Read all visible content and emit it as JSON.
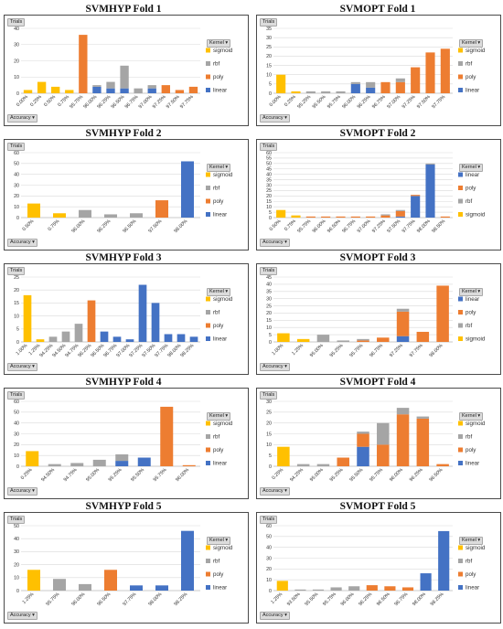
{
  "ui": {
    "trials_button": "Trials",
    "accuracy_button": "Accuracy ▾",
    "kernel_button": "Kernel ▾"
  },
  "colors": {
    "sigmoid": "#FFC000",
    "rbf": "#A5A5A5",
    "poly": "#ED7D31",
    "linear": "#4472C4"
  },
  "chart_data": [
    {
      "type": "bar",
      "title": "SVMHYP Fold 1",
      "categories": [
        "0.00%",
        "0.25%",
        "0.50%",
        "0.75%",
        "95.75%",
        "96.00%",
        "96.25%",
        "96.50%",
        "96.75%",
        "97.00%",
        "97.25%",
        "97.50%",
        "97.75%"
      ],
      "series": [
        {
          "name": "linear",
          "values": [
            0,
            0,
            0,
            0,
            0,
            4,
            3,
            3,
            0,
            3,
            0,
            0,
            0
          ]
        },
        {
          "name": "poly",
          "values": [
            0,
            0,
            0,
            0,
            36,
            0,
            0,
            0,
            0,
            0,
            5,
            2,
            4
          ]
        },
        {
          "name": "rbf",
          "values": [
            0,
            0,
            0,
            0,
            0,
            1,
            4,
            14,
            3,
            2,
            0,
            0,
            0
          ]
        },
        {
          "name": "sigmoid",
          "values": [
            2,
            7,
            4,
            2,
            0,
            0,
            0,
            0,
            0,
            0,
            0,
            0,
            0
          ]
        }
      ],
      "legend": [
        "sigmoid",
        "rbf",
        "poly",
        "linear"
      ],
      "ylim": [
        0,
        40
      ],
      "yticks": [
        0,
        10,
        20,
        30,
        40
      ],
      "legend_position": "right"
    },
    {
      "type": "bar",
      "title": "SVMOPT Fold 1",
      "categories": [
        "0.00%",
        "0.25%",
        "95.25%",
        "95.50%",
        "95.75%",
        "96.00%",
        "96.25%",
        "96.75%",
        "97.00%",
        "97.25%",
        "97.50%",
        "97.75%"
      ],
      "series": [
        {
          "name": "linear",
          "values": [
            0,
            0,
            0,
            0,
            0,
            5,
            3,
            0,
            0,
            0,
            0,
            0
          ]
        },
        {
          "name": "poly",
          "values": [
            0,
            0,
            0,
            0,
            0,
            0,
            0,
            6,
            6,
            14,
            22,
            24
          ]
        },
        {
          "name": "rbf",
          "values": [
            0,
            0,
            1,
            1,
            1,
            1,
            3,
            0,
            2,
            0,
            0,
            0
          ]
        },
        {
          "name": "sigmoid",
          "values": [
            10,
            1,
            0,
            0,
            0,
            0,
            0,
            0,
            0,
            0,
            0,
            0
          ]
        }
      ],
      "legend": [
        "sigmoid",
        "rbf",
        "poly",
        "linear"
      ],
      "ylim": [
        0,
        35
      ],
      "yticks": [
        0,
        5,
        10,
        15,
        20,
        25,
        30,
        35
      ],
      "legend_position": "right"
    },
    {
      "type": "bar",
      "title": "SVMHYP Fold 2",
      "categories": [
        "0.50%",
        "0.75%",
        "96.00%",
        "96.25%",
        "96.50%",
        "97.50%",
        "98.00%"
      ],
      "series": [
        {
          "name": "linear",
          "values": [
            0,
            0,
            0,
            0,
            0,
            0,
            52
          ]
        },
        {
          "name": "poly",
          "values": [
            0,
            0,
            0,
            0,
            0,
            16,
            0
          ]
        },
        {
          "name": "rbf",
          "values": [
            0,
            0,
            7,
            3,
            4,
            0,
            0
          ]
        },
        {
          "name": "sigmoid",
          "values": [
            13,
            4,
            0,
            0,
            0,
            0,
            0
          ]
        }
      ],
      "legend": [
        "sigmoid",
        "rbf",
        "poly",
        "linear"
      ],
      "ylim": [
        0,
        60
      ],
      "yticks": [
        0,
        10,
        20,
        30,
        40,
        50,
        60
      ],
      "legend_position": "right"
    },
    {
      "type": "bar",
      "title": "SVMOPT Fold 2",
      "categories": [
        "0.50%",
        "0.75%",
        "95.75%",
        "96.00%",
        "96.50%",
        "96.75%",
        "97.00%",
        "97.25%",
        "97.50%",
        "97.75%",
        "98.00%",
        "98.50%"
      ],
      "series": [
        {
          "name": "linear",
          "values": [
            0,
            0,
            0,
            0,
            0,
            0,
            0,
            0,
            1,
            20,
            49,
            0
          ]
        },
        {
          "name": "poly",
          "values": [
            0,
            0,
            1,
            1,
            1,
            1,
            1,
            2,
            5,
            1,
            0,
            1
          ]
        },
        {
          "name": "rbf",
          "values": [
            0,
            0,
            0,
            0,
            0,
            0,
            0,
            1,
            1,
            0,
            1,
            0
          ]
        },
        {
          "name": "sigmoid",
          "values": [
            7,
            2,
            0,
            0,
            0,
            0,
            0,
            0,
            0,
            0,
            0,
            0
          ]
        }
      ],
      "legend": [
        "linear",
        "poly",
        "rbf",
        "sigmoid"
      ],
      "ylim": [
        0,
        60
      ],
      "yticks": [
        0,
        5,
        10,
        15,
        20,
        25,
        30,
        35,
        40,
        45,
        50,
        55,
        60
      ],
      "legend_position": "right"
    },
    {
      "type": "bar",
      "title": "SVMHYP Fold 3",
      "categories": [
        "1.00%",
        "1.25%",
        "94.25%",
        "94.50%",
        "94.75%",
        "96.25%",
        "96.50%",
        "96.75%",
        "97.00%",
        "97.25%",
        "97.50%",
        "97.75%",
        "98.00%",
        "98.25%"
      ],
      "series": [
        {
          "name": "linear",
          "values": [
            0,
            0,
            0,
            0,
            0,
            0,
            4,
            2,
            1,
            22,
            15,
            3,
            3,
            2
          ]
        },
        {
          "name": "poly",
          "values": [
            0,
            0,
            0,
            0,
            0,
            16,
            0,
            0,
            0,
            0,
            0,
            0,
            0,
            0
          ]
        },
        {
          "name": "rbf",
          "values": [
            0,
            0,
            2,
            4,
            7,
            0,
            0,
            0,
            0,
            0,
            0,
            0,
            0,
            0
          ]
        },
        {
          "name": "sigmoid",
          "values": [
            18,
            1,
            0,
            0,
            0,
            0,
            0,
            0,
            0,
            0,
            0,
            0,
            0,
            0
          ]
        }
      ],
      "legend": [
        "sigmoid",
        "rbf",
        "poly",
        "linear"
      ],
      "ylim": [
        0,
        25
      ],
      "yticks": [
        0,
        5,
        10,
        15,
        20,
        25
      ],
      "legend_position": "right"
    },
    {
      "type": "bar",
      "title": "SVMOPT Fold 3",
      "categories": [
        "1.00%",
        "1.25%",
        "95.00%",
        "95.25%",
        "95.75%",
        "96.75%",
        "97.25%",
        "97.75%",
        "98.00%"
      ],
      "series": [
        {
          "name": "linear",
          "values": [
            0,
            0,
            0,
            0,
            0,
            0,
            4,
            0,
            0
          ]
        },
        {
          "name": "poly",
          "values": [
            0,
            0,
            0,
            0,
            1,
            3,
            17,
            7,
            39
          ]
        },
        {
          "name": "rbf",
          "values": [
            0,
            0,
            5,
            1,
            1,
            0,
            2,
            0,
            0
          ]
        },
        {
          "name": "sigmoid",
          "values": [
            6,
            2,
            0,
            0,
            0,
            0,
            0,
            0,
            0
          ]
        }
      ],
      "legend": [
        "linear",
        "poly",
        "rbf",
        "sigmoid"
      ],
      "ylim": [
        0,
        45
      ],
      "yticks": [
        0,
        5,
        10,
        15,
        20,
        25,
        30,
        35,
        40,
        45
      ],
      "legend_position": "right"
    },
    {
      "type": "bar",
      "title": "SVMHYP Fold 4",
      "categories": [
        "0.25%",
        "94.50%",
        "94.75%",
        "95.00%",
        "95.25%",
        "95.50%",
        "95.75%",
        "96.00%"
      ],
      "series": [
        {
          "name": "linear",
          "values": [
            0,
            0,
            0,
            0,
            5,
            8,
            0,
            0
          ]
        },
        {
          "name": "poly",
          "values": [
            0,
            0,
            0,
            0,
            0,
            0,
            55,
            1
          ]
        },
        {
          "name": "rbf",
          "values": [
            0,
            2,
            3,
            6,
            6,
            0,
            0,
            0
          ]
        },
        {
          "name": "sigmoid",
          "values": [
            14,
            0,
            0,
            0,
            0,
            0,
            0,
            0
          ]
        }
      ],
      "legend": [
        "sigmoid",
        "rbf",
        "poly",
        "linear"
      ],
      "ylim": [
        0,
        60
      ],
      "yticks": [
        0,
        10,
        20,
        30,
        40,
        50,
        60
      ],
      "legend_position": "right"
    },
    {
      "type": "bar",
      "title": "SVMOPT Fold 4",
      "categories": [
        "0.25%",
        "94.25%",
        "95.00%",
        "95.25%",
        "95.50%",
        "95.75%",
        "96.00%",
        "96.25%",
        "96.50%"
      ],
      "series": [
        {
          "name": "linear",
          "values": [
            0,
            0,
            0,
            0,
            9,
            0,
            0,
            0,
            0
          ]
        },
        {
          "name": "poly",
          "values": [
            0,
            0,
            0,
            4,
            6,
            10,
            24,
            22,
            1
          ]
        },
        {
          "name": "rbf",
          "values": [
            0,
            1,
            1,
            0,
            1,
            10,
            3,
            1,
            0
          ]
        },
        {
          "name": "sigmoid",
          "values": [
            9,
            0,
            0,
            0,
            0,
            0,
            0,
            0,
            0
          ]
        }
      ],
      "legend": [
        "sigmoid",
        "rbf",
        "poly",
        "linear"
      ],
      "ylim": [
        0,
        30
      ],
      "yticks": [
        0,
        5,
        10,
        15,
        20,
        25,
        30
      ],
      "legend_position": "right"
    },
    {
      "type": "bar",
      "title": "SVMHYP Fold 5",
      "categories": [
        "1.25%",
        "95.75%",
        "96.00%",
        "96.50%",
        "97.75%",
        "98.00%",
        "98.25%"
      ],
      "series": [
        {
          "name": "linear",
          "values": [
            0,
            0,
            0,
            0,
            4,
            4,
            46
          ]
        },
        {
          "name": "poly",
          "values": [
            0,
            0,
            0,
            16,
            0,
            0,
            0
          ]
        },
        {
          "name": "rbf",
          "values": [
            0,
            9,
            5,
            0,
            0,
            0,
            0
          ]
        },
        {
          "name": "sigmoid",
          "values": [
            16,
            0,
            0,
            0,
            0,
            0,
            0
          ]
        }
      ],
      "legend": [
        "sigmoid",
        "rbf",
        "poly",
        "linear"
      ],
      "ylim": [
        0,
        50
      ],
      "yticks": [
        0,
        10,
        20,
        30,
        40,
        50
      ],
      "legend_position": "right"
    },
    {
      "type": "bar",
      "title": "SVMOPT Fold 5",
      "categories": [
        "1.25%",
        "93.50%",
        "95.50%",
        "95.75%",
        "96.00%",
        "96.25%",
        "96.50%",
        "96.75%",
        "98.00%",
        "98.25%"
      ],
      "series": [
        {
          "name": "linear",
          "values": [
            0,
            0,
            0,
            0,
            0,
            0,
            0,
            0,
            16,
            55
          ]
        },
        {
          "name": "poly",
          "values": [
            0,
            0,
            0,
            0,
            0,
            5,
            4,
            3,
            0,
            0
          ]
        },
        {
          "name": "rbf",
          "values": [
            0,
            1,
            1,
            3,
            4,
            0,
            0,
            0,
            0,
            0
          ]
        },
        {
          "name": "sigmoid",
          "values": [
            9,
            0,
            0,
            0,
            0,
            0,
            0,
            0,
            0,
            0
          ]
        }
      ],
      "legend": [
        "sigmoid",
        "rbf",
        "poly",
        "linear"
      ],
      "ylim": [
        0,
        60
      ],
      "yticks": [
        0,
        10,
        20,
        30,
        40,
        50,
        60
      ],
      "legend_position": "right"
    }
  ]
}
